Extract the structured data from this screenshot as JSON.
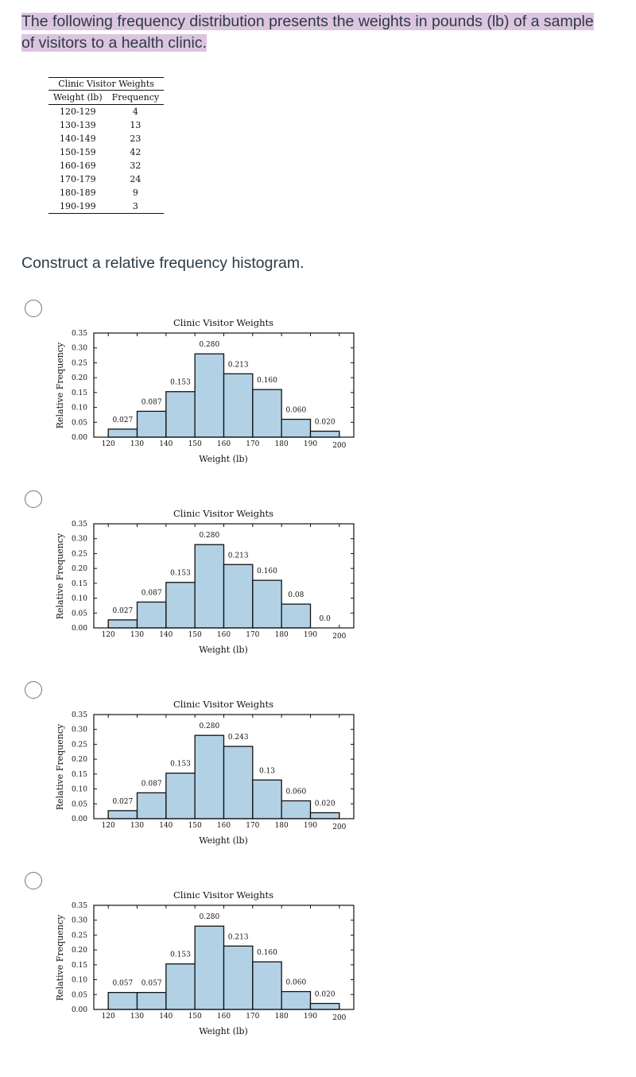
{
  "question": "The following frequency distribution presents the weights in pounds (lb) of a sample of visitors to a health clinic.",
  "table": {
    "caption": "Clinic Visitor Weights",
    "headers": [
      "Weight (lb)",
      "Frequency"
    ],
    "rows": [
      [
        "120-129",
        "4"
      ],
      [
        "130-139",
        "13"
      ],
      [
        "140-149",
        "23"
      ],
      [
        "150-159",
        "42"
      ],
      [
        "160-169",
        "32"
      ],
      [
        "170-179",
        "24"
      ],
      [
        "180-189",
        "9"
      ],
      [
        "190-199",
        "3"
      ]
    ]
  },
  "prompt": "Construct a relative frequency histogram.",
  "chart_data": [
    {
      "type": "bar",
      "title": "Clinic Visitor Weights",
      "xlabel": "Weight (lb)",
      "ylabel": "Relative Frequency",
      "bins": [
        120,
        130,
        140,
        150,
        160,
        170,
        180,
        190,
        200
      ],
      "values": [
        0.027,
        0.087,
        0.153,
        0.28,
        0.213,
        0.16,
        0.06,
        0.02
      ],
      "labels": [
        "0.027",
        "0.087",
        "0.153",
        "0.280",
        "0.213",
        "0.160",
        "0.060",
        "0.020"
      ],
      "xlim": [
        115,
        205
      ],
      "ylim": [
        0,
        0.35
      ],
      "yticks": [
        "0.00",
        "0.05",
        "0.10",
        "0.15",
        "0.20",
        "0.25",
        "0.30",
        "0.35"
      ],
      "xticks": [
        "120",
        "130",
        "140",
        "150",
        "160",
        "170",
        "180",
        "190",
        "200"
      ],
      "color": "#b3d1e5"
    },
    {
      "type": "bar",
      "title": "Clinic Visitor Weights",
      "xlabel": "Weight (lb)",
      "ylabel": "Relative Frequency",
      "bins": [
        120,
        130,
        140,
        150,
        160,
        170,
        180,
        190,
        200
      ],
      "values": [
        0.027,
        0.087,
        0.153,
        0.28,
        0.213,
        0.16,
        0.08,
        0.0
      ],
      "labels": [
        "0.027",
        "0.087",
        "0.153",
        "0.280",
        "0.213",
        "0.160",
        "0.08",
        "0.0"
      ],
      "xlim": [
        115,
        205
      ],
      "ylim": [
        0,
        0.35
      ],
      "yticks": [
        "0.00",
        "0.05",
        "0.10",
        "0.15",
        "0.20",
        "0.25",
        "0.30",
        "0.35"
      ],
      "xticks": [
        "120",
        "130",
        "140",
        "150",
        "160",
        "170",
        "180",
        "190",
        "200"
      ],
      "color": "#b3d1e5"
    },
    {
      "type": "bar",
      "title": "Clinic Visitor Weights",
      "xlabel": "Weight (lb)",
      "ylabel": "Relative Frequency",
      "bins": [
        120,
        130,
        140,
        150,
        160,
        170,
        180,
        190,
        200
      ],
      "values": [
        0.027,
        0.087,
        0.153,
        0.28,
        0.243,
        0.13,
        0.06,
        0.02
      ],
      "labels": [
        "0.027",
        "0.087",
        "0.153",
        "0.280",
        "0.243",
        "0.13",
        "0.060",
        "0.020"
      ],
      "xlim": [
        115,
        205
      ],
      "ylim": [
        0,
        0.35
      ],
      "yticks": [
        "0.00",
        "0.05",
        "0.10",
        "0.15",
        "0.20",
        "0.25",
        "0.30",
        "0.35"
      ],
      "xticks": [
        "120",
        "130",
        "140",
        "150",
        "160",
        "170",
        "180",
        "190",
        "200"
      ],
      "color": "#b3d1e5"
    },
    {
      "type": "bar",
      "title": "Clinic Visitor Weights",
      "xlabel": "Weight (lb)",
      "ylabel": "Relative Frequency",
      "bins": [
        120,
        130,
        140,
        150,
        160,
        170,
        180,
        190,
        200
      ],
      "values": [
        0.057,
        0.057,
        0.153,
        0.28,
        0.213,
        0.16,
        0.06,
        0.02
      ],
      "labels": [
        "0.057",
        "0.057",
        "0.153",
        "0.280",
        "0.213",
        "0.160",
        "0.060",
        "0.020"
      ],
      "xlim": [
        115,
        205
      ],
      "ylim": [
        0,
        0.35
      ],
      "yticks": [
        "0.00",
        "0.05",
        "0.10",
        "0.15",
        "0.20",
        "0.25",
        "0.30",
        "0.35"
      ],
      "xticks": [
        "120",
        "130",
        "140",
        "150",
        "160",
        "170",
        "180",
        "190",
        "200"
      ],
      "color": "#b3d1e5"
    }
  ]
}
